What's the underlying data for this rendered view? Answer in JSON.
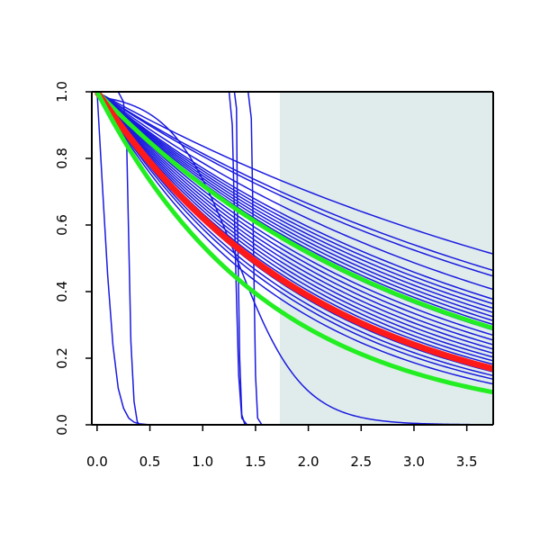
{
  "chart_data": {
    "type": "line",
    "title": "",
    "xlabel": "",
    "ylabel": "",
    "xlim": [
      -0.05,
      3.75
    ],
    "ylim": [
      0,
      1
    ],
    "x_ticks": [
      "0.0",
      "0.5",
      "1.0",
      "1.5",
      "2.0",
      "2.5",
      "3.0",
      "3.5"
    ],
    "y_ticks": [
      "0.0",
      "0.2",
      "0.4",
      "0.6",
      "0.8",
      "1.0"
    ],
    "grid": false,
    "legend": "none",
    "shaded_region": {
      "x_start": 1.73,
      "x_end": 3.75,
      "color": "#e0ecec"
    },
    "colors": {
      "blue": "#1a1adf",
      "red": "#ff1a1a",
      "green": "#22ee22",
      "axis": "#000000"
    },
    "steep_curves": [
      {
        "name": "",
        "color": "blue",
        "x": [
          0.0,
          0.05,
          0.1,
          0.15,
          0.2,
          0.25,
          0.3,
          0.35,
          0.4,
          0.5,
          0.6
        ],
        "y": [
          1.0,
          0.72,
          0.45,
          0.24,
          0.11,
          0.05,
          0.02,
          0.008,
          0.003,
          0.0,
          0.0
        ]
      },
      {
        "name": "",
        "color": "blue",
        "x": [
          0.0,
          0.2,
          0.25,
          0.28,
          0.3,
          0.32,
          0.35,
          0.38,
          0.4,
          0.5
        ],
        "y": [
          1.0,
          1.0,
          0.97,
          0.85,
          0.55,
          0.25,
          0.07,
          0.01,
          0.0,
          0.0
        ]
      },
      {
        "name": "",
        "color": "blue",
        "x": [
          0.0,
          1.3,
          1.32,
          1.33,
          1.35,
          1.37,
          1.4,
          1.45
        ],
        "y": [
          1.0,
          1.0,
          0.95,
          0.6,
          0.2,
          0.03,
          0.0,
          0.0
        ]
      },
      {
        "name": "",
        "color": "blue",
        "x": [
          0.0,
          1.25,
          1.28,
          1.31,
          1.34,
          1.37,
          1.42
        ],
        "y": [
          1.0,
          1.0,
          0.9,
          0.5,
          0.15,
          0.02,
          0.0
        ]
      },
      {
        "name": "",
        "color": "blue",
        "x": [
          0.0,
          1.43,
          1.46,
          1.48,
          1.5,
          1.52,
          1.56
        ],
        "y": [
          1.0,
          1.0,
          0.92,
          0.55,
          0.15,
          0.02,
          0.0
        ]
      }
    ],
    "decay_curves": [
      {
        "name": "",
        "color": "blue",
        "rate": 0.178,
        "width": 1.5
      },
      {
        "name": "",
        "color": "blue",
        "rate": 0.205,
        "width": 1.5
      },
      {
        "name": "",
        "color": "blue",
        "rate": 0.215,
        "width": 1.5
      },
      {
        "name": "",
        "color": "blue",
        "rate": 0.24,
        "width": 1.5
      },
      {
        "name": "",
        "color": "blue",
        "rate": 0.26,
        "width": 1.5
      },
      {
        "name": "",
        "color": "blue",
        "rate": 0.27,
        "width": 1.5
      },
      {
        "name": "",
        "color": "blue",
        "rate": 0.28,
        "width": 1.5
      },
      {
        "name": "",
        "color": "blue",
        "rate": 0.29,
        "width": 1.5
      },
      {
        "name": "",
        "color": "blue",
        "rate": 0.3,
        "width": 1.5
      },
      {
        "name": "",
        "color": "blue",
        "rate": 0.31,
        "width": 1.5
      },
      {
        "name": "",
        "color": "blue",
        "rate": 0.32,
        "width": 1.5
      },
      {
        "name": "",
        "color": "blue",
        "rate": 0.335,
        "width": 1.5
      },
      {
        "name": "",
        "color": "blue",
        "rate": 0.35,
        "width": 1.5
      },
      {
        "name": "",
        "color": "blue",
        "rate": 0.365,
        "width": 1.5
      },
      {
        "name": "",
        "color": "blue",
        "rate": 0.38,
        "width": 1.5
      },
      {
        "name": "",
        "color": "blue",
        "rate": 0.395,
        "width": 1.5
      },
      {
        "name": "",
        "color": "blue",
        "rate": 0.41,
        "width": 1.5
      },
      {
        "name": "",
        "color": "blue",
        "rate": 0.425,
        "width": 1.5
      },
      {
        "name": "",
        "color": "blue",
        "rate": 0.44,
        "width": 1.5
      },
      {
        "name": "",
        "color": "blue",
        "rate": 0.455,
        "width": 1.5
      },
      {
        "name": "",
        "color": "blue",
        "rate": 0.47,
        "width": 1.5
      },
      {
        "name": "",
        "color": "blue",
        "rate": 0.49,
        "width": 1.5
      },
      {
        "name": "",
        "color": "blue",
        "rate": 0.51,
        "width": 1.5
      },
      {
        "name": "",
        "color": "blue",
        "rate": 0.53,
        "width": 1.5
      },
      {
        "name": "",
        "color": "blue",
        "rate": 0.56,
        "width": 1.5
      },
      {
        "name": "",
        "color": "green",
        "rate": 0.33,
        "width": 5
      },
      {
        "name": "",
        "color": "red",
        "rate": 0.475,
        "width": 7
      },
      {
        "name": "",
        "color": "green",
        "rate": 0.62,
        "width": 5
      }
    ],
    "sigmoid_curve": {
      "name": "",
      "color": "blue",
      "midpoint": 1.32,
      "rate": 1.07,
      "width": 1.5
    }
  }
}
